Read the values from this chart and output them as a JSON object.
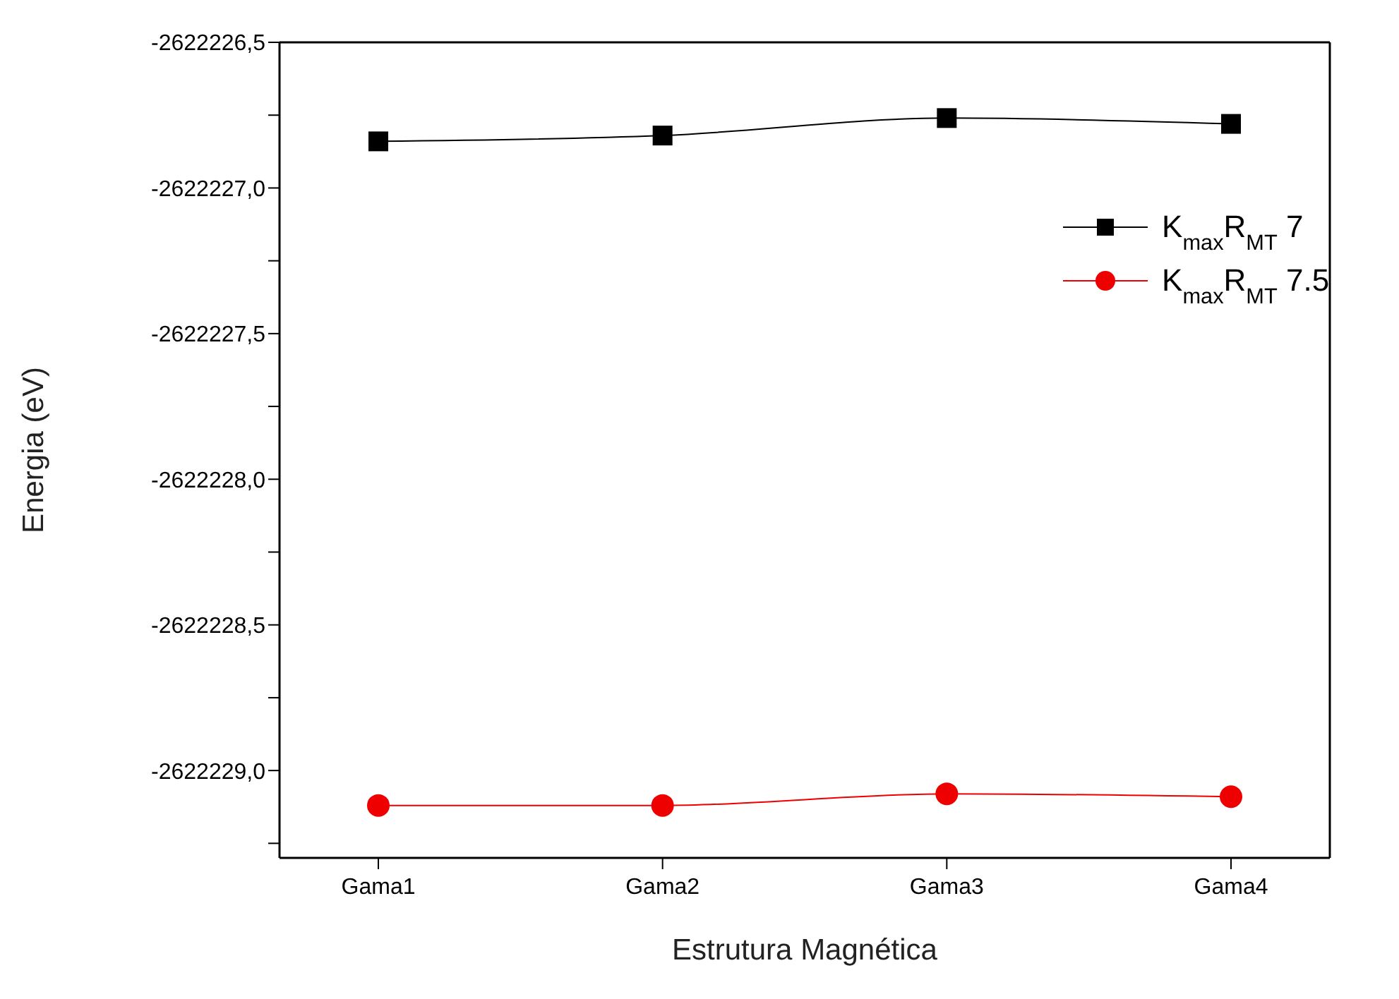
{
  "chart_data": {
    "type": "line",
    "xlabel": "Estrutura Magnética",
    "ylabel": "Energia (eV)",
    "categories": [
      "Gama1",
      "Gama2",
      "Gama3",
      "Gama4"
    ],
    "series": [
      {
        "name": "K$_{max}$R$_{MT}$ 7",
        "color": "#000000",
        "marker": "square",
        "values": [
          -2622226.84,
          -2622226.82,
          -2622226.76,
          -2622226.78
        ]
      },
      {
        "name": "K$_{max}$R$_{MT}$ 7.5",
        "color": "#ee0000",
        "marker": "circle",
        "values": [
          -2622229.12,
          -2622229.12,
          -2622229.08,
          -2622229.09
        ]
      }
    ],
    "ylim": [
      -2622229.3,
      -2622226.5
    ],
    "yticks": [
      {
        "value": -2622226.5,
        "label": "-2622226,5"
      },
      {
        "value": -2622226.75,
        "label": null
      },
      {
        "value": -2622227,
        "label": "-2622227,0"
      },
      {
        "value": -2622227.25,
        "label": null
      },
      {
        "value": -2622227.5,
        "label": "-2622227,5"
      },
      {
        "value": -2622227.75,
        "label": null
      },
      {
        "value": -2622228,
        "label": "-2622228,0"
      },
      {
        "value": -2622228.25,
        "label": null
      },
      {
        "value": -2622228.5,
        "label": "-2622228,5"
      },
      {
        "value": -2622228.75,
        "label": null
      },
      {
        "value": -2622229,
        "label": "-2622229,0"
      },
      {
        "value": -2622229.25,
        "label": null
      }
    ],
    "grid": false,
    "legend": "top right",
    "line_style": "solid"
  }
}
